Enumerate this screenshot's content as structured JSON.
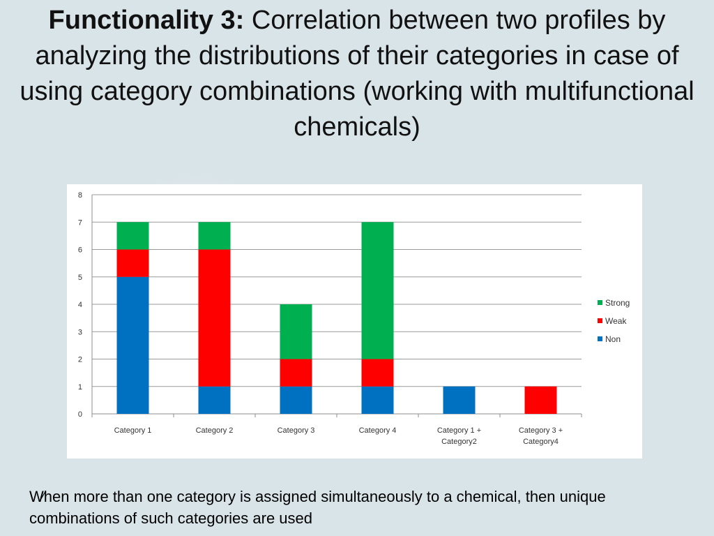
{
  "slide": {
    "title_bold": "Functionality 3:",
    "title_rest": " Correlation between two profiles by analyzing the distributions of their categories in case of using category combinations (working with multifunctional chemicals)",
    "footnote": "When more than one category is assigned simultaneously to a chemical, then unique combinations of such categories are used",
    "cursor_glyph": "⁄"
  },
  "colors": {
    "Non": "#0070c0",
    "Weak": "#ff0000",
    "Strong": "#00b050"
  },
  "chart_data": {
    "type": "bar",
    "stacked": true,
    "title": "",
    "xlabel": "",
    "ylabel": "",
    "ylim": [
      0,
      8
    ],
    "yticks": [
      0,
      1,
      2,
      3,
      4,
      5,
      6,
      7,
      8
    ],
    "grid": true,
    "legend_position": "right",
    "categories": [
      [
        "Category 1"
      ],
      [
        "Category 2"
      ],
      [
        "Category 3"
      ],
      [
        "Category 4"
      ],
      [
        "Category 1 +",
        "Category2"
      ],
      [
        "Category 3 +",
        "Category4"
      ]
    ],
    "series": [
      {
        "name": "Non",
        "values": [
          5,
          1,
          1,
          1,
          1,
          0
        ]
      },
      {
        "name": "Weak",
        "values": [
          1,
          5,
          1,
          1,
          0,
          1
        ]
      },
      {
        "name": "Strong",
        "values": [
          1,
          1,
          2,
          5,
          0,
          0
        ]
      }
    ],
    "legend_order": [
      "Strong",
      "Weak",
      "Non"
    ]
  }
}
